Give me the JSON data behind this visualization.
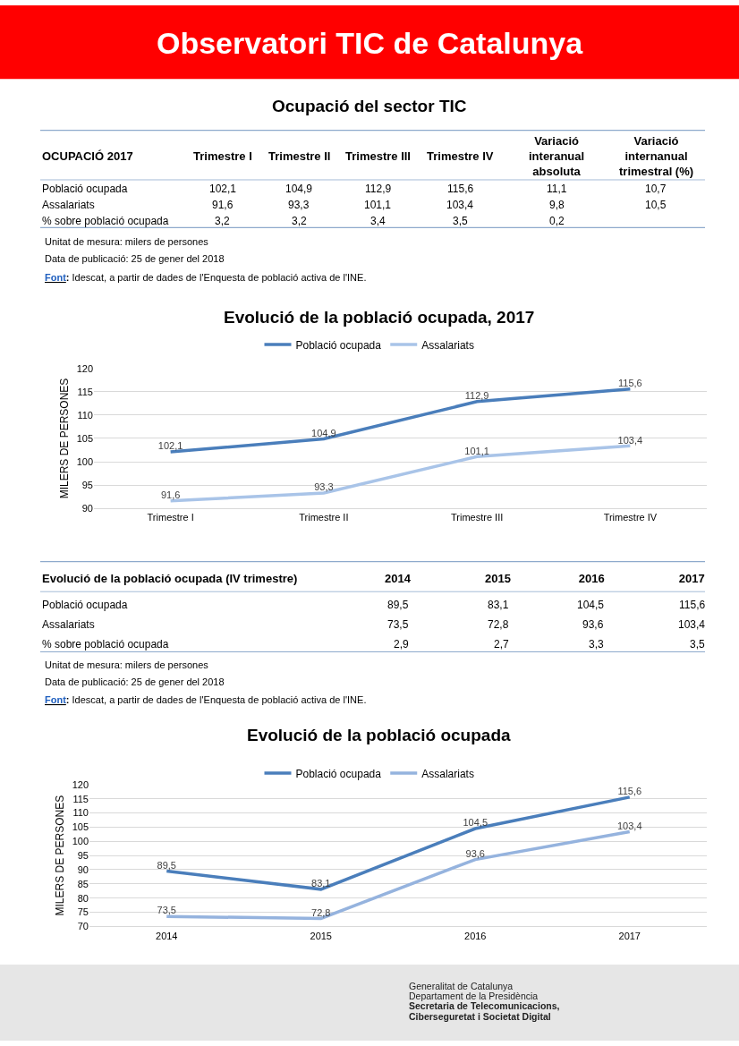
{
  "chart_data": [
    {
      "type": "other",
      "title": "Observatori TIC de Catalunya",
      "color": "#ff0000"
    },
    {
      "type": "other",
      "title": "Ocupació del sector TIC",
      "categories": [
        "OCUPACIÓ 2017",
        "Trimestre I",
        "Trimestre II",
        "Trimestre III",
        "Trimestre IV",
        "Variació interanual absoluta",
        "Variació internanual trimestral (%)"
      ],
      "y_categories": [
        "Població ocupada",
        "Assalariats",
        "% sobre població ocupada"
      ],
      "cell_labels": [
        [
          "102,1",
          "104,9",
          "112,9",
          "115,6",
          "11,1",
          "10,7"
        ],
        [
          "91,6",
          "93,3",
          "101,1",
          "103,4",
          "9,8",
          "10,5"
        ],
        [
          "3,2",
          "3,2",
          "3,4",
          "3,5",
          "0,2",
          null
        ]
      ],
      "annotations": [
        "Unitat de mesura: milers de persones",
        "Data de publicació: 25 de gener del 2018",
        "Font: Idescat, a partir de dades de l'Enquesta de població activa de l'INE."
      ]
    },
    {
      "type": "line",
      "title": "Evolució de la població ocupada, 2017",
      "categories": [
        "Trimestre I",
        "Trimestre II",
        "Trimestre III",
        "Trimestre IV"
      ],
      "ylabel": "MILERS DE PERSONES",
      "ylim": [
        90,
        120
      ],
      "yticks": [
        90,
        95,
        100,
        105,
        110,
        115,
        120
      ],
      "grid": "y",
      "legend": "top",
      "marker": "none",
      "line_style": "solid",
      "series": [
        {
          "name": "Població ocupada",
          "color": "#4a7ebb",
          "values": [
            102.1,
            104.9,
            112.9,
            115.6
          ],
          "value_labels": [
            "102,1",
            "104,9",
            "112,9",
            "115,6"
          ]
        },
        {
          "name": "Assalariats",
          "color": "#a9c4e8",
          "values": [
            91.6,
            93.3,
            101.1,
            103.4
          ],
          "value_labels": [
            "91,6",
            "93,3",
            "101,1",
            "103,4"
          ]
        }
      ]
    },
    {
      "type": "other",
      "categories": [
        "Evolució de la població ocupada (IV trimestre)",
        "2014",
        "2015",
        "2016",
        "2017"
      ],
      "y_categories": [
        "Població ocupada",
        "Assalariats",
        "% sobre població ocupada"
      ],
      "cell_labels": [
        [
          "89,5",
          "83,1",
          "104,5",
          "115,6"
        ],
        [
          "73,5",
          "72,8",
          "93,6",
          "103,4"
        ],
        [
          "2,9",
          "2,7",
          "3,3",
          "3,5"
        ]
      ],
      "annotations": [
        "Unitat de mesura: milers de persones",
        "Data de publicació: 25 de gener del 2018",
        "Font: Idescat, a partir de dades de l'Enquesta de població activa de l'INE."
      ]
    },
    {
      "type": "line",
      "title": "Evolució de la població ocupada",
      "categories": [
        "2014",
        "2015",
        "2016",
        "2017"
      ],
      "ylabel": "MILERS DE PERSONES",
      "ylim": [
        70,
        120
      ],
      "yticks": [
        70,
        75,
        80,
        85,
        90,
        95,
        100,
        105,
        110,
        115,
        120
      ],
      "grid": "y",
      "legend": "top",
      "marker": "none",
      "line_style": "solid",
      "series": [
        {
          "name": "Població ocupada",
          "color": "#4a7ebb",
          "values": [
            89.5,
            83.1,
            104.5,
            115.6
          ],
          "value_labels": [
            "89,5",
            "83,1",
            "104,5",
            "115,6"
          ]
        },
        {
          "name": "Assalariats",
          "color": "#95b3de",
          "values": [
            73.5,
            72.8,
            93.6,
            103.4
          ],
          "value_labels": [
            "73,5",
            "72,8",
            "93,6",
            "103,4"
          ]
        }
      ]
    },
    {
      "type": "other",
      "annotations": [
        "Generalitat de Catalunya",
        "Departament de la Presidència",
        "Secretaria de Telecomunicacions,",
        "Ciberseguretat i Societat Digital"
      ]
    }
  ]
}
